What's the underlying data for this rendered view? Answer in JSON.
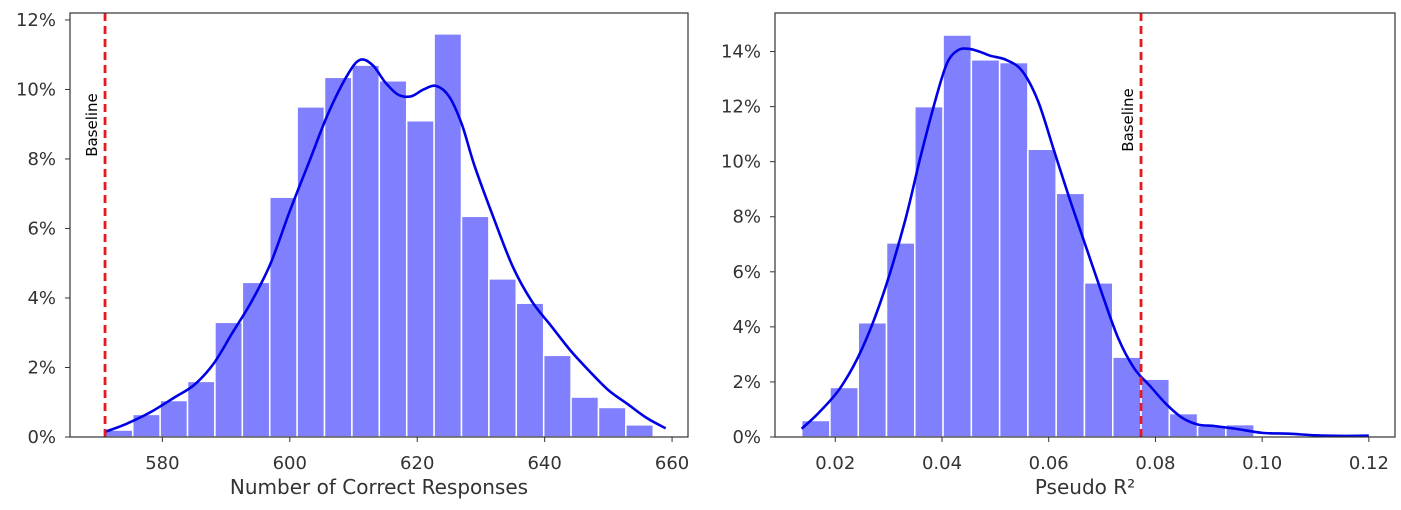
{
  "chart_data": [
    {
      "type": "histogram",
      "title": "",
      "xlabel": "Number of Correct Responses",
      "ylabel": "",
      "xlim": [
        565.5,
        662.5
      ],
      "ylim": [
        0,
        12.2
      ],
      "xticks": [
        580,
        600,
        620,
        640,
        660
      ],
      "xtick_labels": [
        "580",
        "600",
        "620",
        "640",
        "660"
      ],
      "yticks": [
        0,
        2,
        4,
        6,
        8,
        10,
        12
      ],
      "ytick_labels": [
        "0%",
        "2%",
        "4%",
        "6%",
        "8%",
        "10%",
        "12%"
      ],
      "bin_edges": [
        571.05,
        575.35,
        579.65,
        583.95,
        588.25,
        592.55,
        596.85,
        601.15,
        605.45,
        609.75,
        614.05,
        618.35,
        622.65,
        626.95,
        631.25,
        635.55,
        639.85,
        644.15,
        648.45,
        652.75,
        657.05
      ],
      "values": [
        0.2,
        0.65,
        1.05,
        1.6,
        3.3,
        4.45,
        6.9,
        9.5,
        10.35,
        10.7,
        10.25,
        9.1,
        11.6,
        6.35,
        4.55,
        3.85,
        2.35,
        1.15,
        0.85,
        0.35
      ],
      "kde": {
        "x": [
          571,
          574,
          578,
          582,
          585,
          588,
          591,
          594,
          597,
          600,
          603,
          606,
          609,
          611,
          613,
          615,
          617,
          619,
          621,
          623,
          625,
          627,
          629,
          632,
          635,
          638,
          641,
          644,
          647,
          650,
          653,
          656,
          659
        ],
        "y": [
          0.15,
          0.35,
          0.7,
          1.15,
          1.5,
          2.1,
          3.0,
          3.9,
          5.0,
          6.5,
          7.9,
          9.3,
          10.4,
          10.85,
          10.7,
          10.2,
          9.85,
          9.8,
          10.0,
          10.1,
          9.8,
          9.0,
          7.8,
          6.3,
          4.9,
          3.9,
          3.2,
          2.5,
          1.9,
          1.35,
          0.95,
          0.55,
          0.25
        ]
      },
      "baseline": {
        "x": 571,
        "label": "Baseline"
      }
    },
    {
      "type": "histogram",
      "title": "",
      "xlabel": "Pseudo R²",
      "ylabel": "",
      "xlim": [
        0.0087,
        0.1249
      ],
      "ylim": [
        0,
        15.4
      ],
      "xticks": [
        0.02,
        0.04,
        0.06,
        0.08,
        0.1,
        0.12
      ],
      "xtick_labels": [
        "0.02",
        "0.04",
        "0.06",
        "0.08",
        "0.10",
        "0.12"
      ],
      "yticks": [
        0,
        2,
        4,
        6,
        8,
        10,
        12,
        14
      ],
      "ytick_labels": [
        "0%",
        "2%",
        "4%",
        "6%",
        "8%",
        "10%",
        "12%",
        "14%"
      ],
      "bin_edges": [
        0.0137,
        0.019,
        0.0243,
        0.0296,
        0.0349,
        0.0402,
        0.0455,
        0.0508,
        0.0561,
        0.0614,
        0.0667,
        0.072,
        0.0773,
        0.0826,
        0.0879,
        0.0932,
        0.0985
      ],
      "values": [
        0.6,
        1.8,
        4.15,
        7.05,
        12.0,
        14.6,
        13.7,
        13.6,
        10.45,
        8.85,
        5.6,
        2.9,
        2.1,
        0.85,
        0.4,
        0.45
      ],
      "kde": {
        "x": [
          0.0137,
          0.017,
          0.021,
          0.025,
          0.029,
          0.033,
          0.036,
          0.039,
          0.041,
          0.043,
          0.045,
          0.047,
          0.049,
          0.052,
          0.055,
          0.058,
          0.061,
          0.064,
          0.067,
          0.07,
          0.073,
          0.076,
          0.079,
          0.082,
          0.085,
          0.088,
          0.091,
          0.095,
          0.1,
          0.105,
          0.11,
          0.115,
          0.12
        ],
        "y": [
          0.3,
          0.9,
          1.8,
          3.2,
          5.2,
          7.8,
          10.2,
          12.4,
          13.6,
          14.05,
          14.1,
          14.0,
          13.85,
          13.7,
          13.3,
          12.2,
          10.4,
          8.6,
          6.9,
          5.2,
          3.6,
          2.5,
          1.85,
          1.2,
          0.7,
          0.45,
          0.4,
          0.3,
          0.15,
          0.12,
          0.06,
          0.04,
          0.05
        ]
      },
      "baseline": {
        "x": 0.0773,
        "label": "Baseline"
      }
    }
  ]
}
